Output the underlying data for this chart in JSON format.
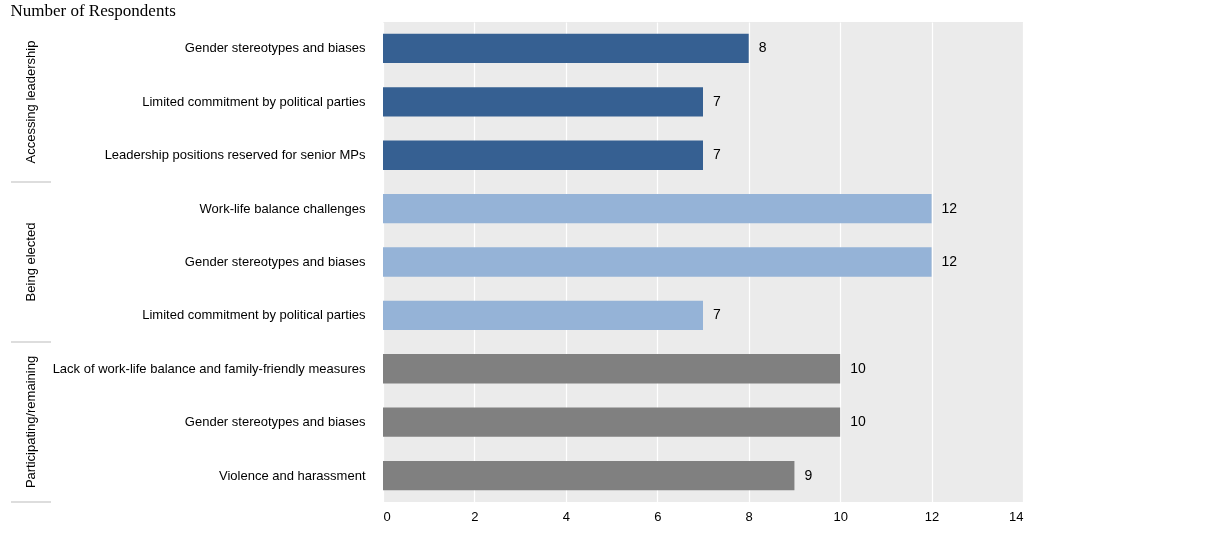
{
  "chart_data": {
    "type": "bar",
    "orientation": "horizontal",
    "title": "Number of Respondents",
    "categories": [
      "Gender stereotypes and biases",
      "Limited commitment by political parties",
      "Leadership positions reserved for senior MPs",
      "Work-life balance challenges",
      "Gender stereotypes and biases",
      "Limited commitment by political parties",
      "Lack of work-life balance and family-friendly measures",
      "Gender stereotypes and biases",
      "Violence and harassment"
    ],
    "values": [
      8,
      7,
      7,
      12,
      12,
      7,
      10,
      10,
      9
    ],
    "colors": [
      "#366092",
      "#366092",
      "#366092",
      "#95b3d7",
      "#95b3d7",
      "#95b3d7",
      "#808080",
      "#808080",
      "#808080"
    ],
    "xlim": [
      0,
      14
    ],
    "xticks": [
      0,
      2,
      4,
      6,
      8,
      10,
      12,
      14
    ],
    "grid": "x",
    "data_labels": true,
    "annotations": [
      "Accessing leadership",
      "Being elected",
      "Participating/remaining"
    ]
  }
}
